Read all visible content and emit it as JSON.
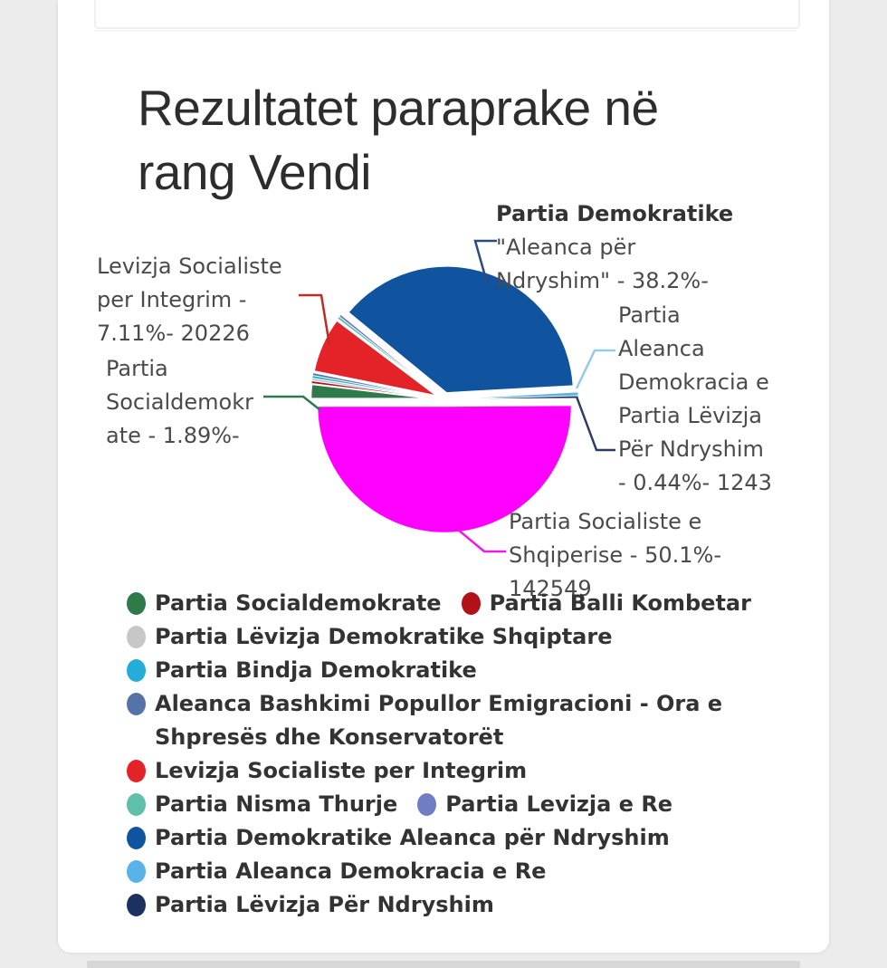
{
  "page": {
    "title_lines": [
      "Rezultatet paraprake në",
      "rang Vendi"
    ]
  },
  "chart_data": {
    "type": "pie",
    "title": "Rezultatet paraprake në rang Vendi",
    "legend_position": "bottom",
    "start_angle_deg": 180,
    "direction": "clockwise",
    "slices": [
      {
        "label": "Partia Socialdemokrate",
        "value_pct": 1.89,
        "color": "#2F7A4B"
      },
      {
        "label": "Partia Balli Kombetar",
        "value_pct": 0.32,
        "color": "#B11219"
      },
      {
        "label": "Partia Lëvizja Demokratike Shqiptare",
        "value_pct": 0.32,
        "color": "#C6C7C9"
      },
      {
        "label": "Partia Bindja Demokratike",
        "value_pct": 0.32,
        "color": "#24ADD8"
      },
      {
        "label": "Aleanca Bashkimi Popullor Emigracioni - Ora e Shpresës dhe Konservatorët",
        "value_pct": 0.32,
        "color": "#5573A9"
      },
      {
        "label": "Levizja Socialiste per Integrim",
        "value_pct": 7.11,
        "votes": 20226,
        "color": "#E32327"
      },
      {
        "label": "Partia Nisma Thurje",
        "value_pct": 0.32,
        "color": "#5FBFA9"
      },
      {
        "label": "Partia Levizja e Re",
        "value_pct": 0.32,
        "color": "#6F7DC3"
      },
      {
        "label": "Partia Demokratike Aleanca për Ndryshim",
        "value_pct": 38.2,
        "color": "#10549F"
      },
      {
        "label": "Partia Aleanca Demokracia e Re",
        "value_pct": 0.44,
        "votes": 1243,
        "color": "#57B3E8"
      },
      {
        "label": "Partia Lëvizja Për Ndryshim",
        "value_pct": 0.32,
        "color": "#1D3161"
      },
      {
        "label": "Partia Socialiste e Shqiperise",
        "value_pct": 50.1,
        "votes": 142549,
        "color": "#FF00FF"
      }
    ]
  },
  "annotations": {
    "pd": {
      "lines": [
        "Partia Demokratike",
        "\"Aleanca për",
        "Ndryshim\" - 38.2%-"
      ]
    },
    "lsi": {
      "lines": [
        "Levizja Socialiste",
        "per Integrim -",
        "7.11%- 20226"
      ]
    },
    "psd": {
      "lines": [
        "Partia",
        "Socialdemokr",
        "ate - 1.89%-"
      ]
    },
    "padr_plpn": {
      "lines": [
        "Partia",
        "Aleanca",
        "Demokracia e",
        "Partia Lëvizja",
        "Për Ndryshim",
        "- 0.44%- 1243"
      ]
    },
    "ps": {
      "lines": [
        "Partia Socialiste e",
        "Shqiperise - 50.1%-",
        "142549"
      ]
    }
  },
  "legend": {
    "rows": [
      [
        {
          "label": "Partia Socialdemokrate",
          "color": "#2F7A4B"
        },
        {
          "label": "Partia Balli Kombetar",
          "color": "#B11219"
        }
      ],
      [
        {
          "label": "Partia Lëvizja Demokratike Shqiptare",
          "color": "#C6C7C9"
        }
      ],
      [
        {
          "label": "Partia Bindja Demokratike",
          "color": "#24ADD8"
        }
      ],
      [
        {
          "label": "Aleanca Bashkimi Popullor Emigracioni - Ora e Shpresës dhe Konservatorët",
          "color": "#5573A9"
        }
      ],
      [
        {
          "label": "Levizja Socialiste per Integrim",
          "color": "#E32327"
        }
      ],
      [
        {
          "label": "Partia Nisma Thurje",
          "color": "#5FBFA9"
        },
        {
          "label": "Partia Levizja e Re",
          "color": "#6F7DC3"
        }
      ],
      [
        {
          "label": "Partia Demokratike Aleanca për Ndryshim",
          "color": "#10549F"
        }
      ],
      [
        {
          "label": "Partia Aleanca Demokracia e Re",
          "color": "#57B3E8"
        }
      ],
      [
        {
          "label": "Partia Lëvizja Për Ndryshim",
          "color": "#1D3161"
        }
      ]
    ]
  }
}
